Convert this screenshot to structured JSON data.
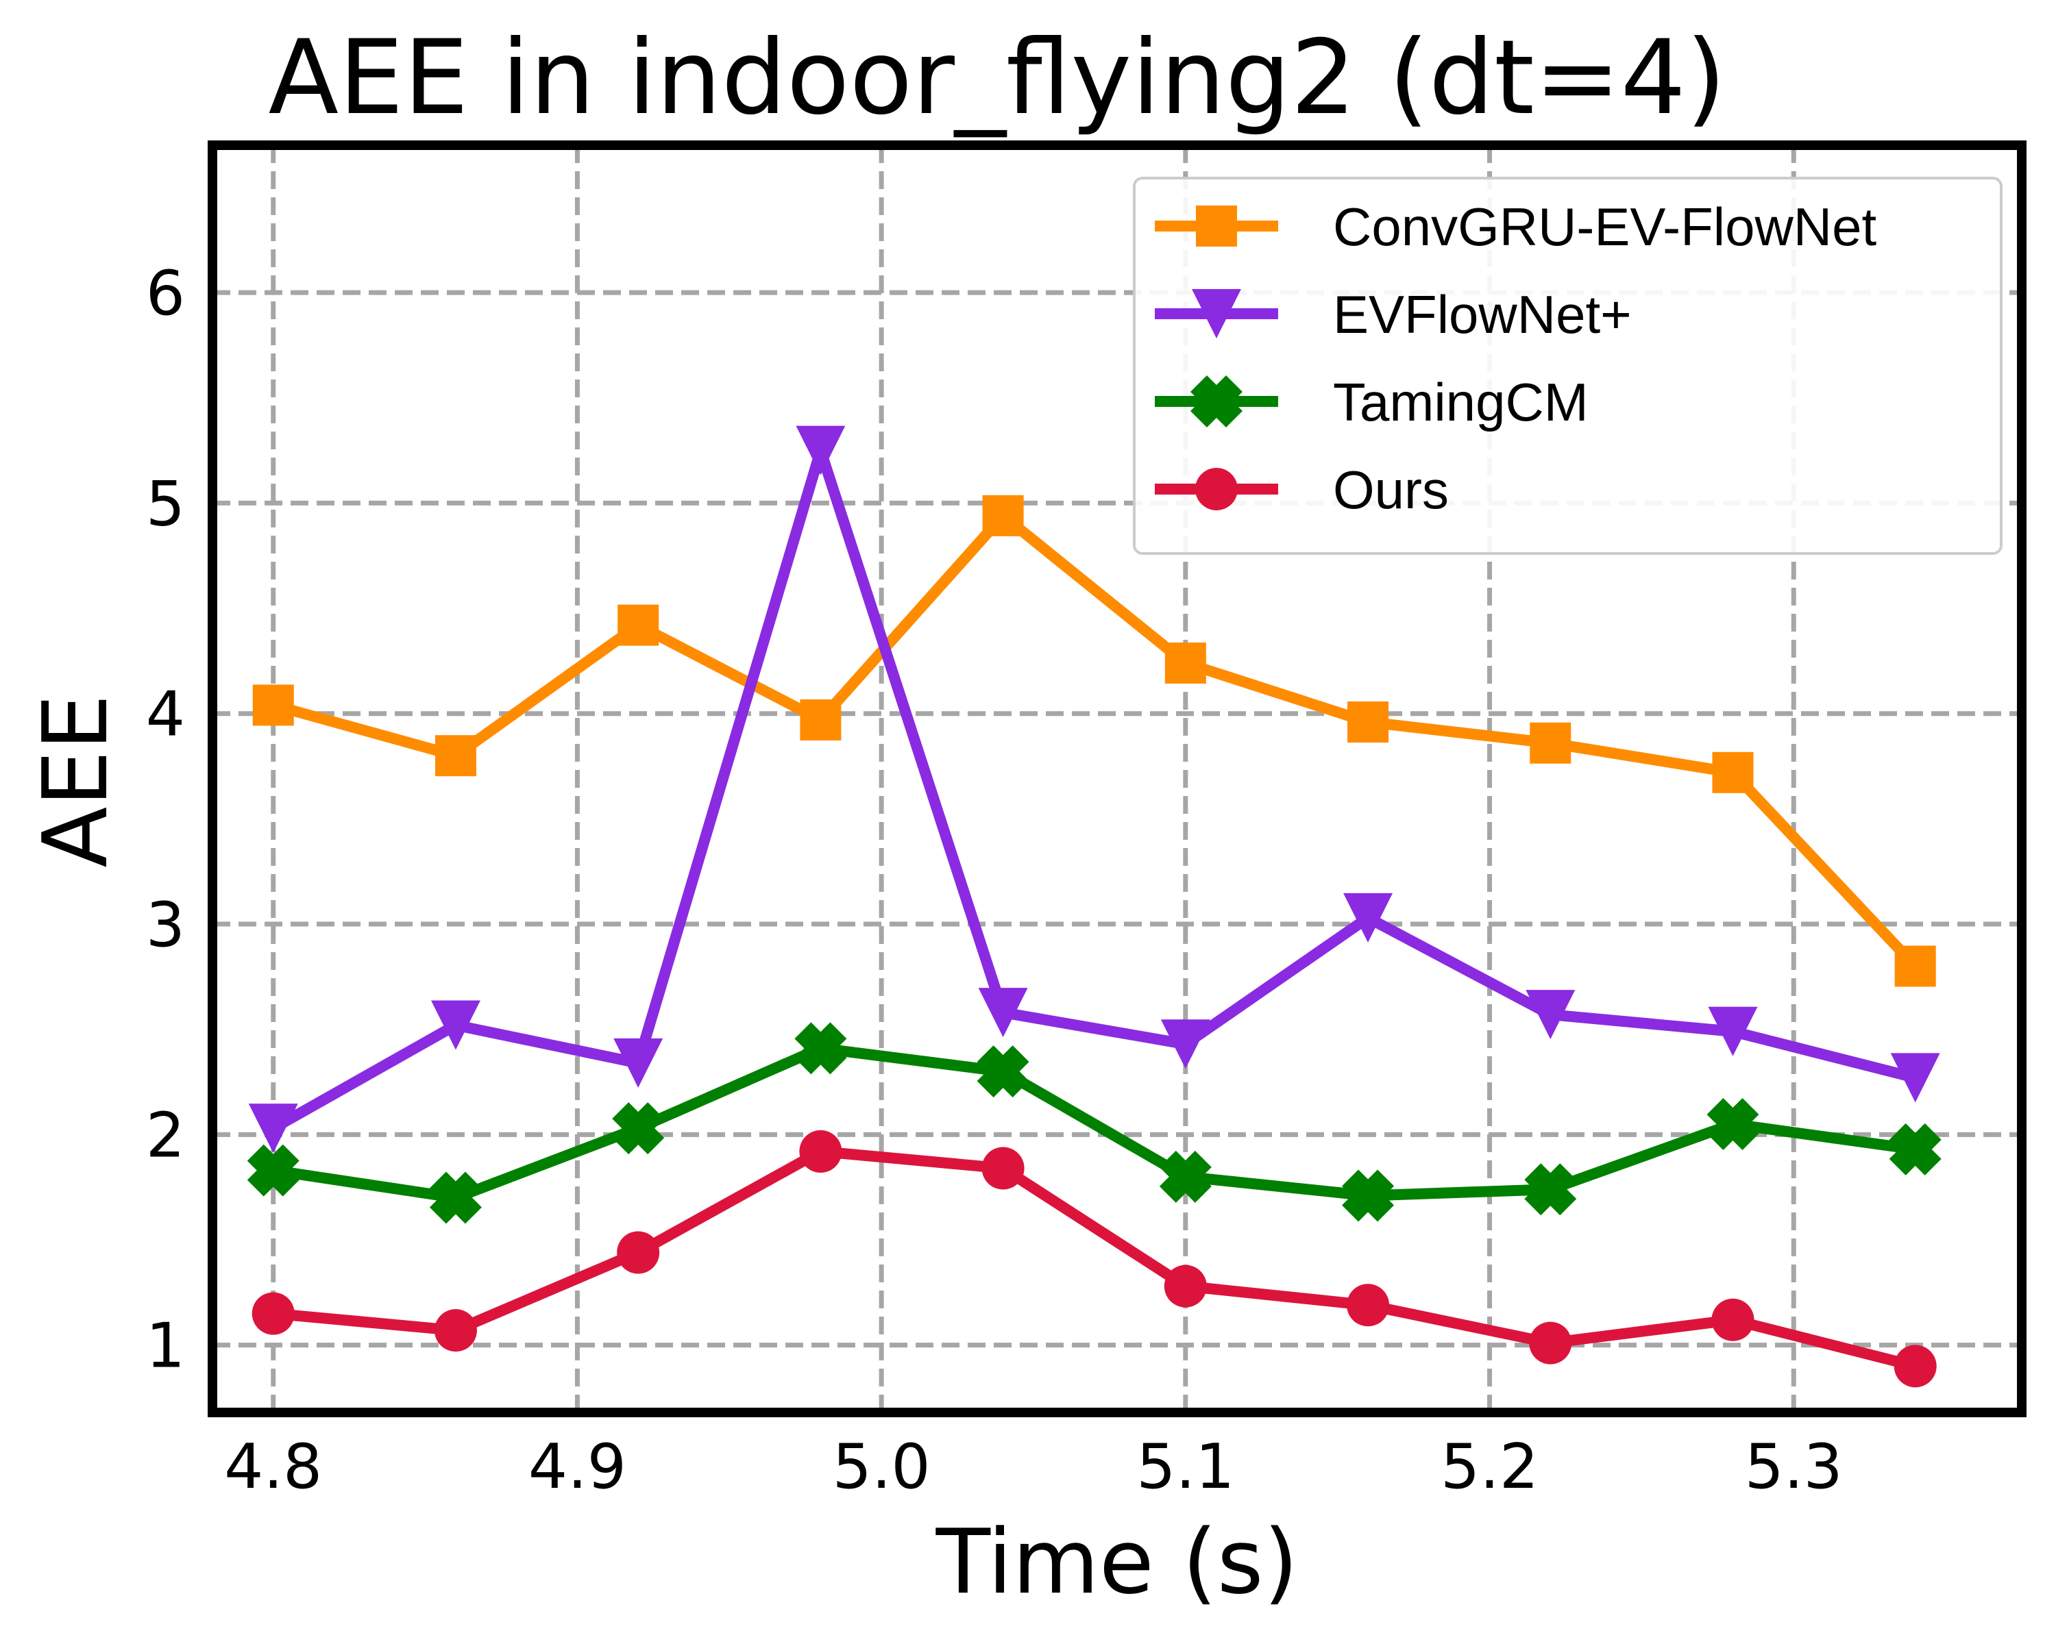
{
  "chart_data": {
    "type": "line",
    "title": "AEE in indoor_flying2 (dt=4)",
    "xlabel": "Time (s)",
    "ylabel": "AEE",
    "xlim": [
      4.78,
      5.375
    ],
    "ylim": [
      0.68,
      6.7
    ],
    "xticks": [
      "4.8",
      "4.9",
      "5.0",
      "5.1",
      "5.2",
      "5.3"
    ],
    "xtick_values": [
      4.8,
      4.9,
      5.0,
      5.1,
      5.2,
      5.3
    ],
    "yticks": [
      "1",
      "2",
      "3",
      "4",
      "5",
      "6"
    ],
    "ytick_values": [
      1,
      2,
      3,
      4,
      5,
      6
    ],
    "grid": true,
    "legend_position": "top-right",
    "x": [
      4.8,
      4.86,
      4.92,
      4.98,
      5.04,
      5.1,
      5.16,
      5.22,
      5.28,
      5.34
    ],
    "series": [
      {
        "name": "ConvGRU-EV-FlowNet",
        "color": "#ff8c00",
        "marker": "square",
        "values": [
          4.04,
          3.8,
          4.42,
          3.97,
          4.94,
          4.24,
          3.96,
          3.86,
          3.72,
          2.8
        ]
      },
      {
        "name": "EVFlowNet+",
        "color": "#8a2be2",
        "marker": "triangle-down",
        "values": [
          2.03,
          2.52,
          2.34,
          5.25,
          2.58,
          2.43,
          3.03,
          2.57,
          2.49,
          2.27
        ]
      },
      {
        "name": "TamingCM",
        "color": "#008000",
        "marker": "x-cross",
        "values": [
          1.83,
          1.7,
          2.03,
          2.41,
          2.3,
          1.8,
          1.71,
          1.74,
          2.05,
          1.93
        ]
      },
      {
        "name": "Ours",
        "color": "#dc143c",
        "marker": "circle",
        "values": [
          1.15,
          1.07,
          1.44,
          1.92,
          1.84,
          1.28,
          1.19,
          1.01,
          1.12,
          0.9
        ]
      }
    ]
  }
}
